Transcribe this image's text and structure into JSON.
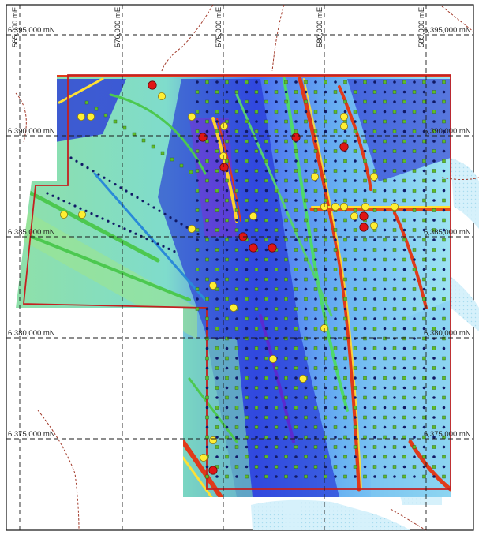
{
  "map": {
    "easting_labels": [
      "565,000 mE",
      "570,000 mE",
      "575,000 mE",
      "580,000 mE",
      "585,000 mE"
    ],
    "northing_labels_left": [
      "6,395,000 mN",
      "6,390,000 mN",
      "6,385,000 mN",
      "6,380,000 mN",
      "6,375,000 mN"
    ],
    "northing_labels_right": [
      "6,395,000 mN",
      "6,390,000 mN",
      "6,385,000 mN",
      "6,380,000 mN",
      "6,375,000 mN"
    ],
    "colors": {
      "boundary": "#c42020",
      "grid": "#1a1a1a",
      "drill_hole": "#111a66",
      "sample_green": "#5dbb2a",
      "highlight_yellow": "#ffee33",
      "highlight_red": "#e01515",
      "water": "#cdeefb",
      "roads": "#a23a2a"
    }
  }
}
